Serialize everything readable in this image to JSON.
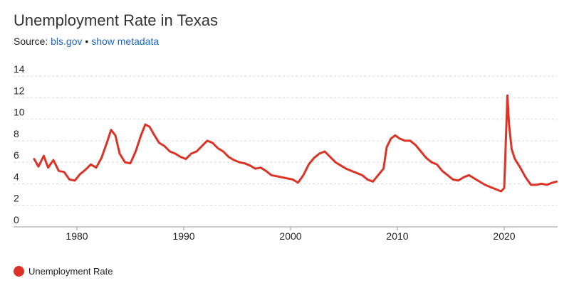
{
  "header": {
    "title": "Unemployment Rate in Texas",
    "source_prefix": "Source: ",
    "source_link": "bls.gov",
    "separator": " • ",
    "metadata_link": "show metadata"
  },
  "colors": {
    "line": "#dc3326",
    "grid": "#d9d9d9",
    "link": "#1a66c6"
  },
  "chart_data": {
    "type": "line",
    "title": "Unemployment Rate in Texas",
    "xlabel": "",
    "ylabel": "",
    "xlim": [
      1976,
      2025
    ],
    "ylim": [
      0,
      14
    ],
    "yticks": [
      0,
      2,
      4,
      6,
      8,
      10,
      12,
      14
    ],
    "xticks": [
      1980,
      1990,
      2000,
      2010,
      2020
    ],
    "grid": true,
    "legend": "bottom-left",
    "series": [
      {
        "name": "Unemployment Rate",
        "x": [
          1976.0,
          1976.4,
          1976.9,
          1977.3,
          1977.8,
          1978.3,
          1978.8,
          1979.3,
          1979.8,
          1980.3,
          1980.8,
          1981.3,
          1981.8,
          1982.3,
          1982.8,
          1983.2,
          1983.6,
          1984.0,
          1984.5,
          1985.0,
          1985.5,
          1986.0,
          1986.4,
          1986.8,
          1987.2,
          1987.7,
          1988.2,
          1988.7,
          1989.2,
          1989.7,
          1990.2,
          1990.7,
          1991.2,
          1991.7,
          1992.2,
          1992.7,
          1993.2,
          1993.7,
          1994.2,
          1994.7,
          1995.2,
          1995.7,
          1996.2,
          1996.7,
          1997.2,
          1997.7,
          1998.2,
          1998.7,
          1999.2,
          1999.7,
          2000.2,
          2000.7,
          2001.2,
          2001.7,
          2002.2,
          2002.7,
          2003.2,
          2003.7,
          2004.2,
          2004.7,
          2005.2,
          2005.7,
          2006.2,
          2006.7,
          2007.2,
          2007.7,
          2008.2,
          2008.7,
          2009.0,
          2009.4,
          2009.8,
          2010.2,
          2010.7,
          2011.2,
          2011.7,
          2012.2,
          2012.7,
          2013.2,
          2013.7,
          2014.2,
          2014.7,
          2015.2,
          2015.7,
          2016.2,
          2016.7,
          2017.2,
          2017.7,
          2018.2,
          2018.7,
          2019.2,
          2019.7,
          2020.0,
          2020.3,
          2020.45,
          2020.7,
          2021.0,
          2021.5,
          2022.0,
          2022.5,
          2023.0,
          2023.5,
          2024.0,
          2024.5,
          2024.9
        ],
        "values": [
          6.3,
          5.6,
          6.6,
          5.5,
          6.2,
          5.2,
          5.1,
          4.4,
          4.3,
          4.9,
          5.3,
          5.8,
          5.5,
          6.4,
          7.8,
          9.0,
          8.5,
          6.8,
          6.0,
          5.9,
          7.0,
          8.5,
          9.5,
          9.3,
          8.6,
          7.8,
          7.5,
          7.0,
          6.8,
          6.5,
          6.3,
          6.8,
          7.0,
          7.5,
          8.0,
          7.8,
          7.3,
          7.0,
          6.5,
          6.2,
          6.0,
          5.9,
          5.7,
          5.4,
          5.5,
          5.2,
          4.8,
          4.7,
          4.6,
          4.5,
          4.4,
          4.1,
          4.8,
          5.8,
          6.4,
          6.8,
          7.0,
          6.5,
          6.0,
          5.7,
          5.4,
          5.2,
          5.0,
          4.8,
          4.4,
          4.2,
          4.8,
          5.4,
          7.4,
          8.2,
          8.5,
          8.2,
          8.0,
          8.0,
          7.6,
          7.0,
          6.4,
          6.0,
          5.8,
          5.2,
          4.8,
          4.4,
          4.3,
          4.6,
          4.8,
          4.5,
          4.2,
          3.9,
          3.7,
          3.5,
          3.3,
          3.6,
          12.2,
          9.5,
          7.2,
          6.3,
          5.5,
          4.6,
          3.9,
          3.9,
          4.0,
          3.9,
          4.1,
          4.2
        ]
      }
    ]
  }
}
